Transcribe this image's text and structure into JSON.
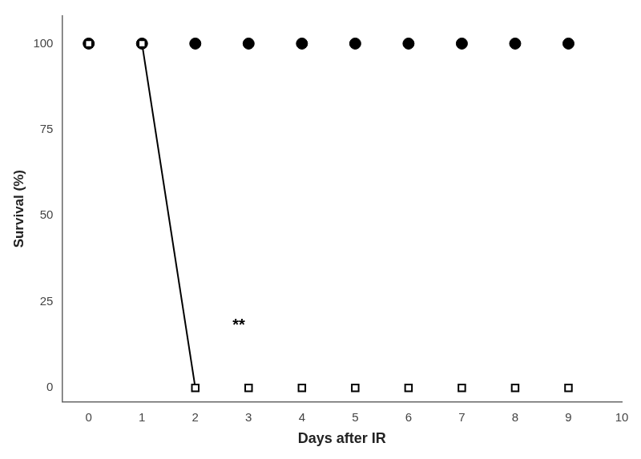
{
  "chart_data": {
    "type": "scatter",
    "xlabel": "Days after IR",
    "ylabel": "Survival (%)",
    "series": [
      {
        "type": "line",
        "line_style": "solid",
        "color": "#000000",
        "x": [
          1,
          2
        ],
        "values": [
          100,
          0
        ]
      },
      {
        "type": "scatter",
        "marker": "circle",
        "color": "#000000",
        "x": [
          0,
          1,
          2,
          3,
          4,
          5,
          6,
          7,
          8,
          9
        ],
        "values": [
          100,
          100,
          100,
          100,
          100,
          100,
          100,
          100,
          100,
          100
        ]
      },
      {
        "type": "scatter",
        "marker": "square",
        "color": "#000000",
        "x": [
          0,
          1,
          2,
          3,
          4,
          5,
          6,
          7,
          8,
          9
        ],
        "values": [
          100,
          100,
          0,
          0,
          0,
          0,
          0,
          0,
          0,
          0
        ]
      }
    ],
    "annotations": [
      {
        "text": "**",
        "x": 2.7,
        "y": 18
      }
    ],
    "xlim": [
      -0.5,
      10.0
    ],
    "ylim": [
      -4,
      108
    ],
    "xticks": [
      0,
      1,
      2,
      3,
      4,
      5,
      6,
      7,
      8,
      9,
      10
    ],
    "yticks": [
      0,
      25,
      50,
      75,
      100
    ],
    "grid": false
  }
}
